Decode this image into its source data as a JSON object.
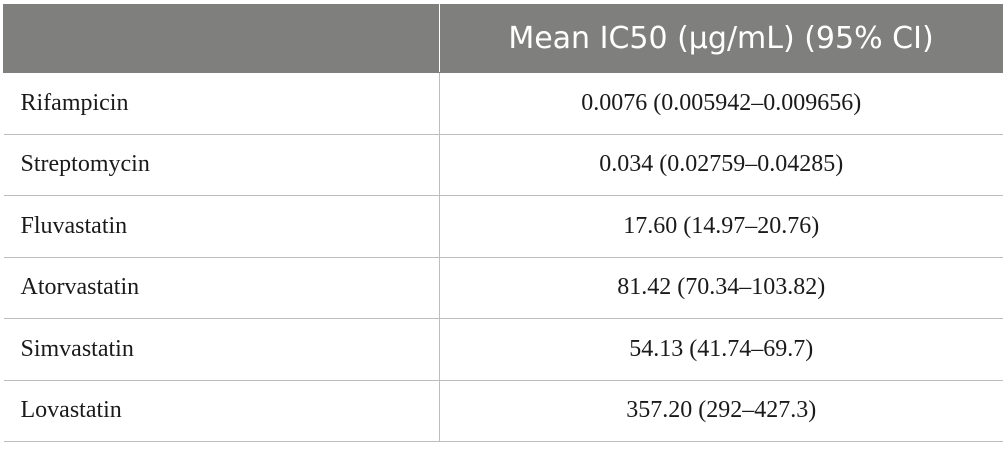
{
  "table": {
    "header": [
      "",
      "Mean IC50 (µg/mL) (95% CI)"
    ],
    "rows": [
      {
        "drug": "Rifampicin",
        "value": "0.0076 (0.005942–0.009656)"
      },
      {
        "drug": "Streptomycin",
        "value": "0.034 (0.02759–0.04285)"
      },
      {
        "drug": "Fluvastatin",
        "value": "17.60 (14.97–20.76)"
      },
      {
        "drug": "Atorvastatin",
        "value": "81.42 (70.34–103.82)"
      },
      {
        "drug": "Simvastatin",
        "value": "54.13 (41.74–69.7)"
      },
      {
        "drug": "Lovastatin",
        "value": "357.20 (292–427.3)"
      }
    ]
  },
  "colors": {
    "header_background": "#7f807e",
    "header_text": "#ffffff",
    "grid_line": "#bdbdbd",
    "body_text": "#1a1a1a"
  }
}
